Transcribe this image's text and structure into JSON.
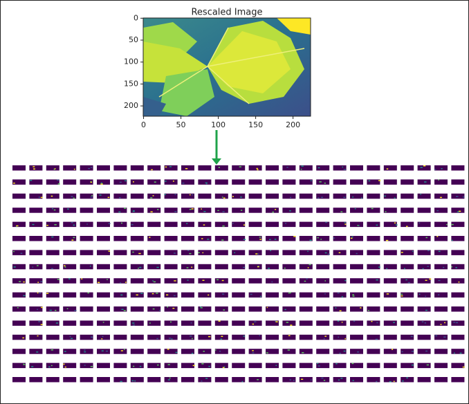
{
  "image_plot": {
    "title": "Rescaled Image",
    "xlim": [
      -0.5,
      223.5
    ],
    "ylim": [
      -0.5,
      223.5
    ],
    "xticks": [
      0,
      50,
      100,
      150,
      200
    ],
    "yticks": [
      0,
      50,
      100,
      150,
      200
    ]
  }
}
